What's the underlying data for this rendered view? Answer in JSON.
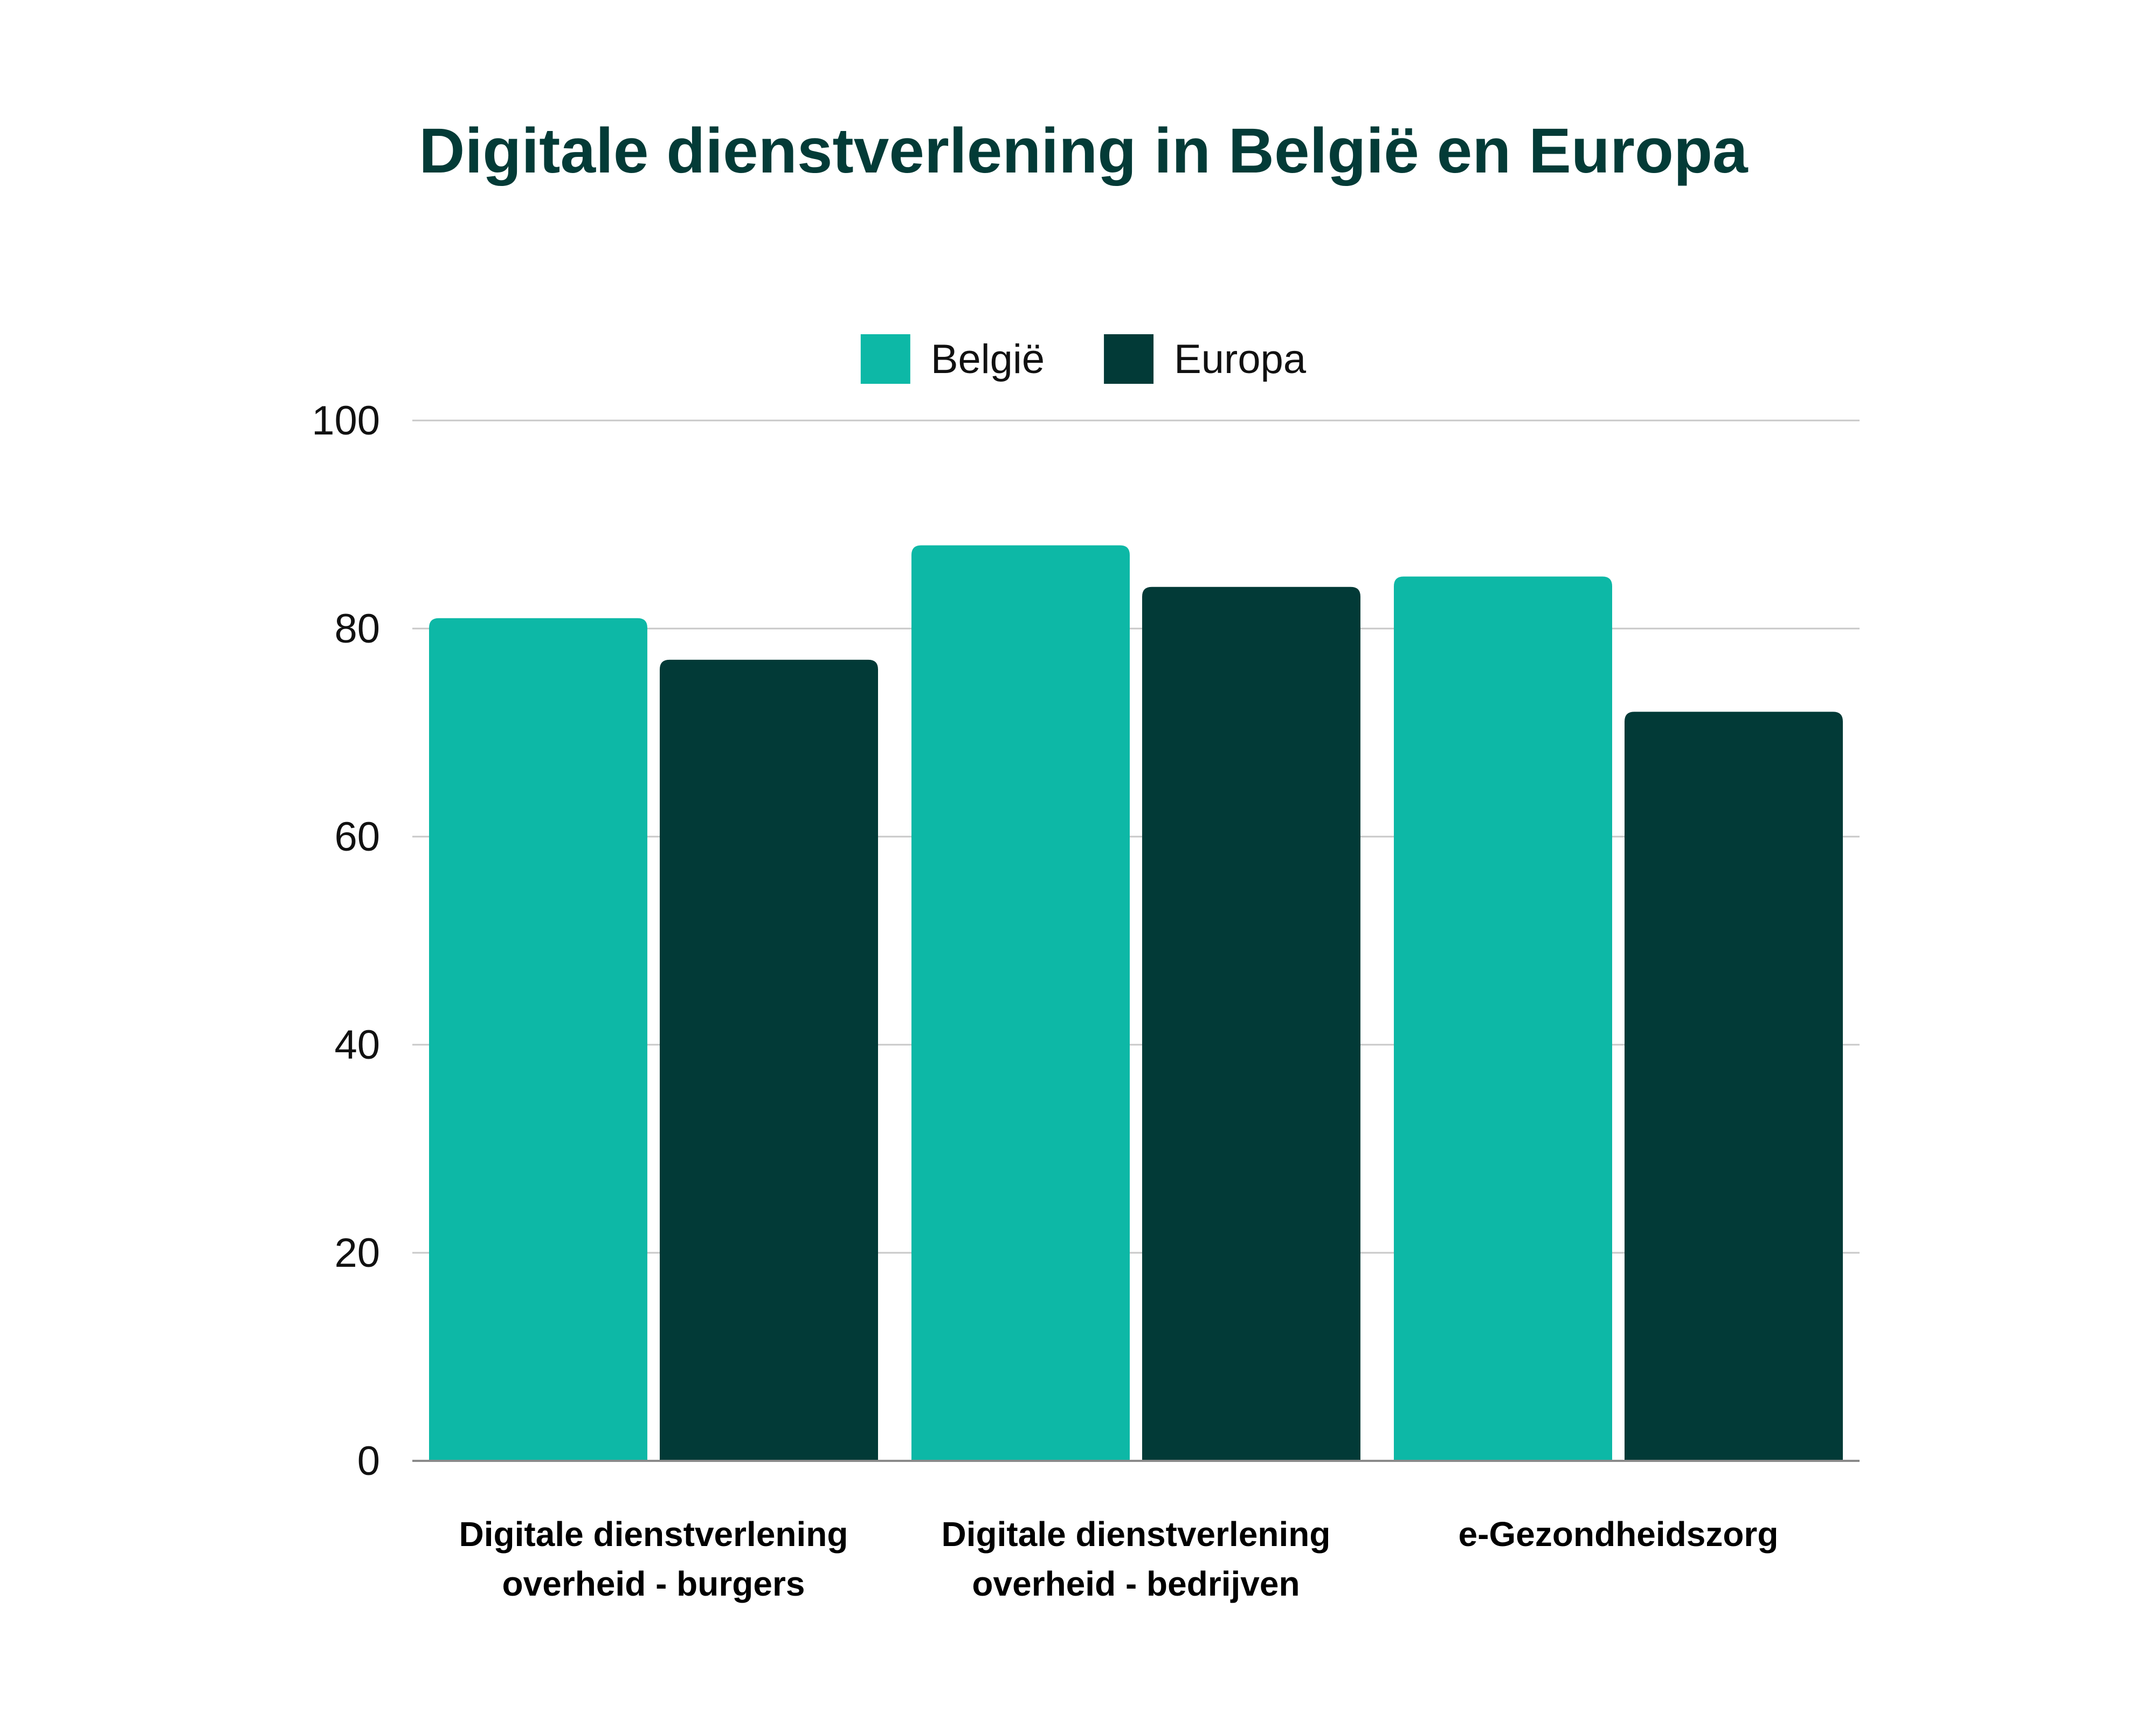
{
  "chart_data": {
    "type": "bar",
    "title": "Digitale dienstverlening in België en Europa",
    "categories": [
      [
        "Digitale dienstverlening",
        "overheid - burgers"
      ],
      [
        "Digitale dienstverlening",
        "overheid - bedrijven"
      ],
      [
        "e-Gezondheidszorg"
      ]
    ],
    "series": [
      {
        "name": "België",
        "color": "#0db8a6",
        "values": [
          81,
          88,
          85
        ]
      },
      {
        "name": "Europa",
        "color": "#023a37",
        "values": [
          77,
          84,
          72
        ]
      }
    ],
    "xlabel": "",
    "ylabel": "",
    "ylim": [
      0,
      100
    ],
    "yticks": [
      0,
      20,
      40,
      60,
      80,
      100
    ],
    "grid": true,
    "legend_position": "top-center"
  }
}
